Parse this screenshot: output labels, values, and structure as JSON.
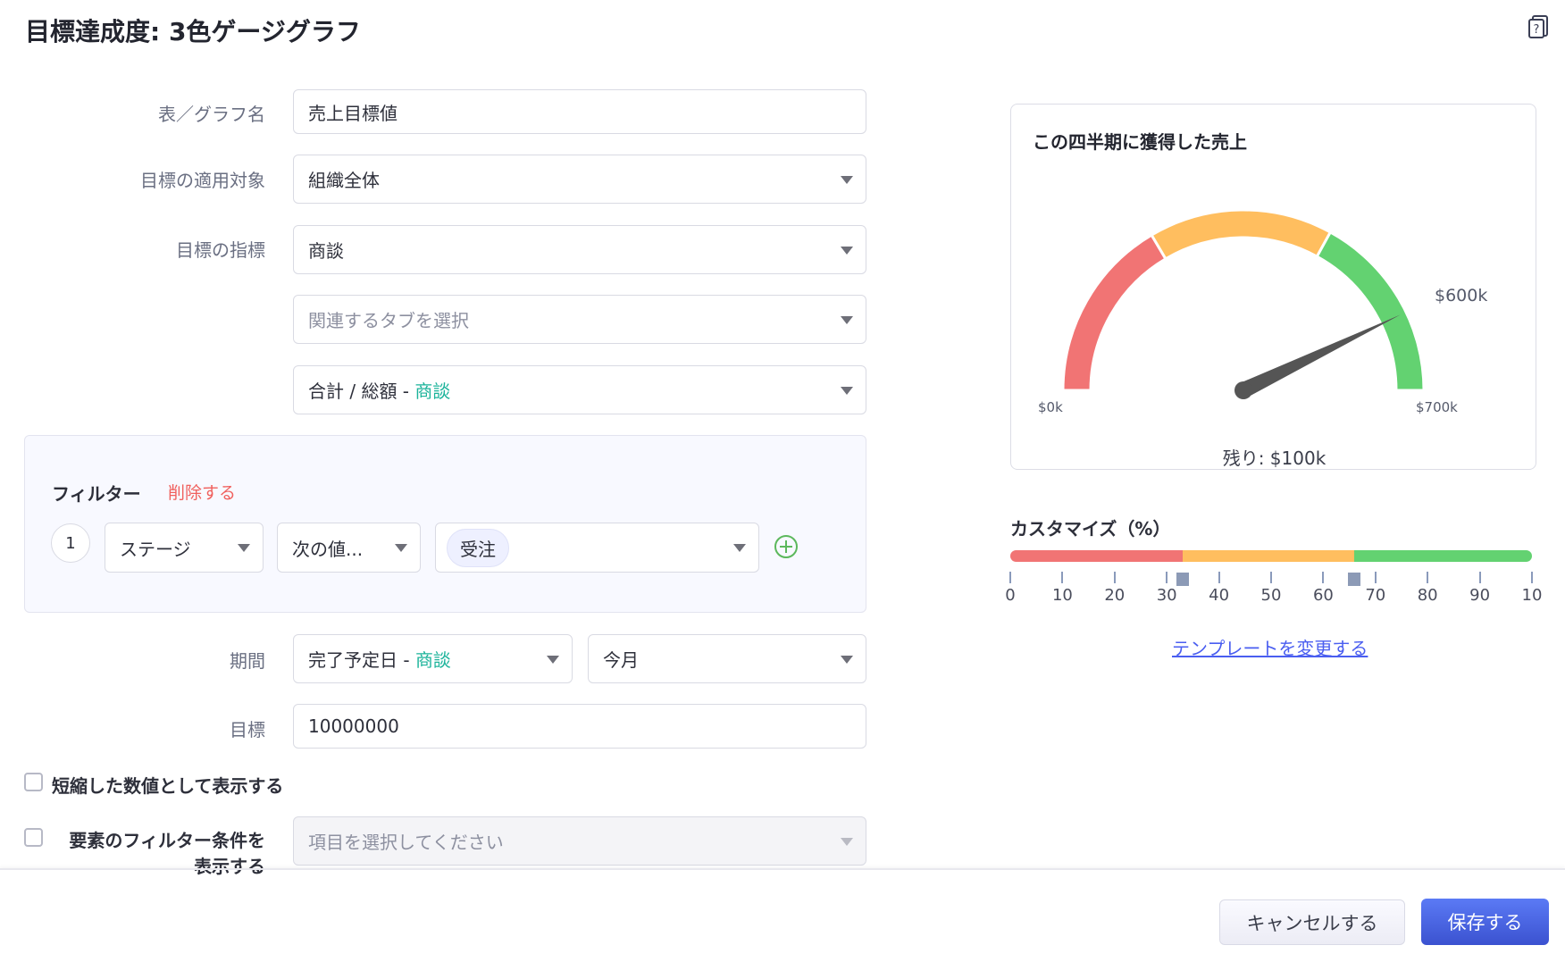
{
  "header": {
    "title": "目標達成度: 3色ゲージグラフ",
    "help_icon": "help-book-icon"
  },
  "form": {
    "chart_name": {
      "label": "表／グラフ名",
      "value": "売上目標値"
    },
    "target_scope": {
      "label": "目標の適用対象",
      "value": "組織全体"
    },
    "metric": {
      "label": "目標の指標",
      "value": "商談"
    },
    "related_tab": {
      "placeholder": "関連するタブを選択"
    },
    "aggregate": {
      "value_prefix": "合計 / 総額 - ",
      "value_entity": "商談"
    },
    "filter": {
      "title": "フィルター",
      "delete_label": "削除する",
      "row_number": "1",
      "field": "ステージ",
      "operator": "次の値...",
      "value_chip": "受注"
    },
    "period": {
      "label": "期間",
      "date_prefix": "完了予定日 - ",
      "date_entity": "商談",
      "range": "今月"
    },
    "goal": {
      "label": "目標",
      "value": "10000000"
    },
    "abbreviate": {
      "label": "短縮した数値として表示する",
      "checked": false
    },
    "element_filter": {
      "label_line1": "要素のフィルター条件を",
      "label_line2": "表示する",
      "checked": false,
      "placeholder": "項目を選択してください"
    }
  },
  "preview": {
    "title": "この四半期に獲得した売上",
    "min_label": "$0k",
    "max_label": "$700k",
    "value_label": "$600k",
    "remaining": "残り: $100k",
    "value": 600,
    "max": 700,
    "colors": {
      "red": "#f17474",
      "orange": "#ffbe5f",
      "green": "#63d271",
      "needle": "#555555"
    }
  },
  "customize": {
    "title": "カスタマイズ（%）",
    "thresholds": [
      33,
      66
    ],
    "ticks": [
      "0",
      "10",
      "20",
      "30",
      "40",
      "50",
      "60",
      "70",
      "80",
      "90",
      "10"
    ],
    "change_template": "テンプレートを変更する"
  },
  "footer": {
    "cancel": "キャンセルする",
    "save": "保存する"
  }
}
